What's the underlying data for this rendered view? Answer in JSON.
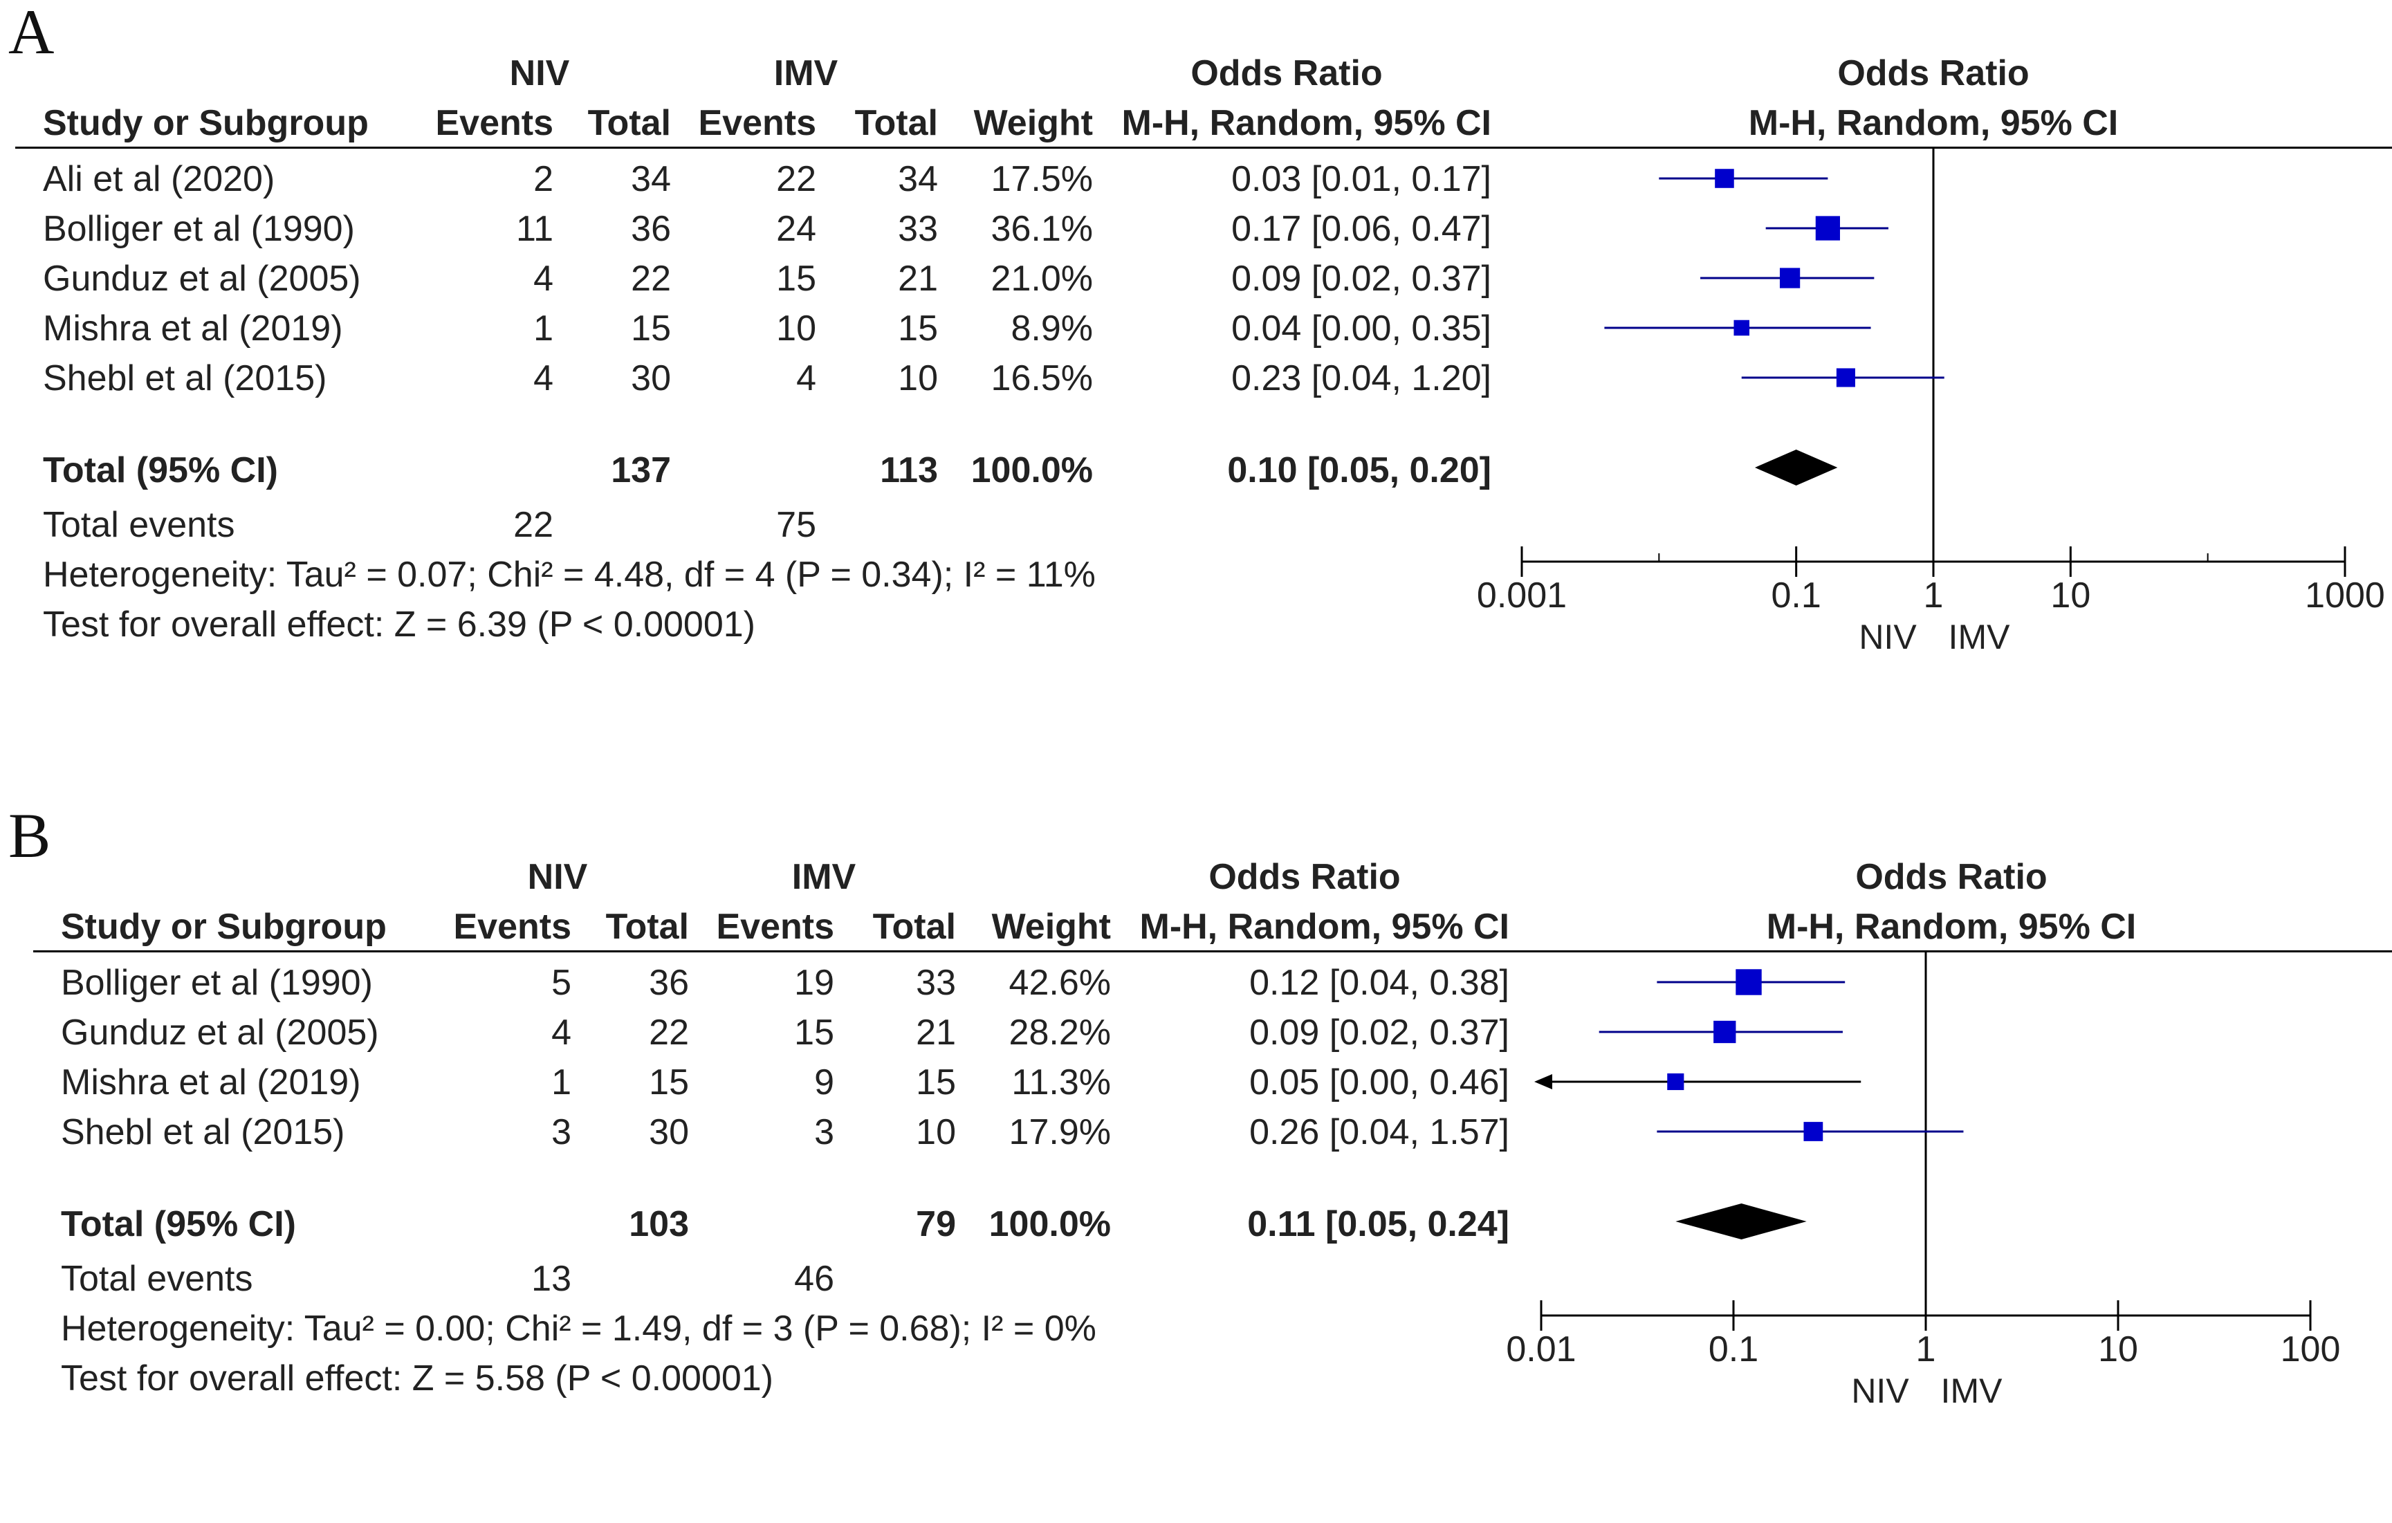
{
  "colors": {
    "marker": "#0000cc",
    "line": "#00008b",
    "diamond": "#000000"
  },
  "chart_data": [
    {
      "type": "forest",
      "panel": "A",
      "headers": {
        "study": "Study or Subgroup",
        "group1": "NIV",
        "group2": "IMV",
        "events": "Events",
        "total": "Total",
        "weight": "Weight",
        "or": "Odds Ratio",
        "method": "M-H, Random, 95% CI"
      },
      "studies": [
        {
          "name": "Ali et al (2020)",
          "e1": "2",
          "n1": "34",
          "e2": "22",
          "n2": "34",
          "weight": "17.5%",
          "ci_text": "0.03 [0.01, 0.17]",
          "or": 0.03,
          "lo": 0.01,
          "hi": 0.17,
          "w": 17.5
        },
        {
          "name": "Bolliger et al (1990)",
          "e1": "11",
          "n1": "36",
          "e2": "24",
          "n2": "33",
          "weight": "36.1%",
          "ci_text": "0.17 [0.06, 0.47]",
          "or": 0.17,
          "lo": 0.06,
          "hi": 0.47,
          "w": 36.1
        },
        {
          "name": "Gunduz et al (2005)",
          "e1": "4",
          "n1": "22",
          "e2": "15",
          "n2": "21",
          "weight": "21.0%",
          "ci_text": "0.09 [0.02, 0.37]",
          "or": 0.09,
          "lo": 0.02,
          "hi": 0.37,
          "w": 21.0
        },
        {
          "name": "Mishra et al (2019)",
          "e1": "1",
          "n1": "15",
          "e2": "10",
          "n2": "15",
          "weight": "8.9%",
          "ci_text": "0.04 [0.00, 0.35]",
          "or": 0.04,
          "lo": 0.004,
          "hi": 0.35,
          "w": 8.9
        },
        {
          "name": "Shebl et al (2015)",
          "e1": "4",
          "n1": "30",
          "e2": "4",
          "n2": "10",
          "weight": "16.5%",
          "ci_text": "0.23 [0.04, 1.20]",
          "or": 0.23,
          "lo": 0.04,
          "hi": 1.2,
          "w": 16.5
        }
      ],
      "total": {
        "label": "Total (95% CI)",
        "n1": "137",
        "n2": "113",
        "weight": "100.0%",
        "ci_text": "0.10 [0.05, 0.20]",
        "or": 0.1,
        "lo": 0.05,
        "hi": 0.2
      },
      "total_events": {
        "label": "Total events",
        "e1": "22",
        "e2": "75"
      },
      "heterogeneity": "Heterogeneity: Tau² = 0.07; Chi² = 4.48, df = 4 (P = 0.34); I² = 11%",
      "overall_effect": "Test for overall effect: Z = 6.39 (P < 0.00001)",
      "axis": {
        "scale": "log",
        "range": [
          0.001,
          1000
        ],
        "ticks": [
          0.001,
          0.1,
          1,
          10,
          1000
        ],
        "tick_labels": [
          "0.001",
          "0.1",
          "1",
          "10",
          "1000"
        ],
        "left_label": "NIV",
        "right_label": "IMV"
      }
    },
    {
      "type": "forest",
      "panel": "B",
      "headers": {
        "study": "Study or Subgroup",
        "group1": "NIV",
        "group2": "IMV",
        "events": "Events",
        "total": "Total",
        "weight": "Weight",
        "or": "Odds Ratio",
        "method": "M-H, Random, 95% CI"
      },
      "studies": [
        {
          "name": "Bolliger et al (1990)",
          "e1": "5",
          "n1": "36",
          "e2": "19",
          "n2": "33",
          "weight": "42.6%",
          "ci_text": "0.12 [0.04, 0.38]",
          "or": 0.12,
          "lo": 0.04,
          "hi": 0.38,
          "w": 42.6
        },
        {
          "name": "Gunduz et al (2005)",
          "e1": "4",
          "n1": "22",
          "e2": "15",
          "n2": "21",
          "weight": "28.2%",
          "ci_text": "0.09 [0.02, 0.37]",
          "or": 0.09,
          "lo": 0.02,
          "hi": 0.37,
          "w": 28.2
        },
        {
          "name": "Mishra et al (2019)",
          "e1": "1",
          "n1": "15",
          "e2": "9",
          "n2": "15",
          "weight": "11.3%",
          "ci_text": "0.05 [0.00, 0.46]",
          "or": 0.05,
          "lo": 0.004,
          "hi": 0.46,
          "w": 11.3,
          "arrow_left": true
        },
        {
          "name": "Shebl et al (2015)",
          "e1": "3",
          "n1": "30",
          "e2": "3",
          "n2": "10",
          "weight": "17.9%",
          "ci_text": "0.26 [0.04, 1.57]",
          "or": 0.26,
          "lo": 0.04,
          "hi": 1.57,
          "w": 17.9
        }
      ],
      "total": {
        "label": "Total (95% CI)",
        "n1": "103",
        "n2": "79",
        "weight": "100.0%",
        "ci_text": "0.11 [0.05, 0.24]",
        "or": 0.11,
        "lo": 0.05,
        "hi": 0.24
      },
      "total_events": {
        "label": "Total events",
        "e1": "13",
        "e2": "46"
      },
      "heterogeneity": "Heterogeneity: Tau² = 0.00; Chi² = 1.49, df = 3 (P = 0.68); I² = 0%",
      "overall_effect": "Test for overall effect: Z = 5.58 (P < 0.00001)",
      "axis": {
        "scale": "log",
        "range": [
          0.01,
          100
        ],
        "ticks": [
          0.01,
          0.1,
          1,
          10,
          100
        ],
        "tick_labels": [
          "0.01",
          "0.1",
          "1",
          "10",
          "100"
        ],
        "left_label": "NIV",
        "right_label": "IMV"
      }
    }
  ]
}
